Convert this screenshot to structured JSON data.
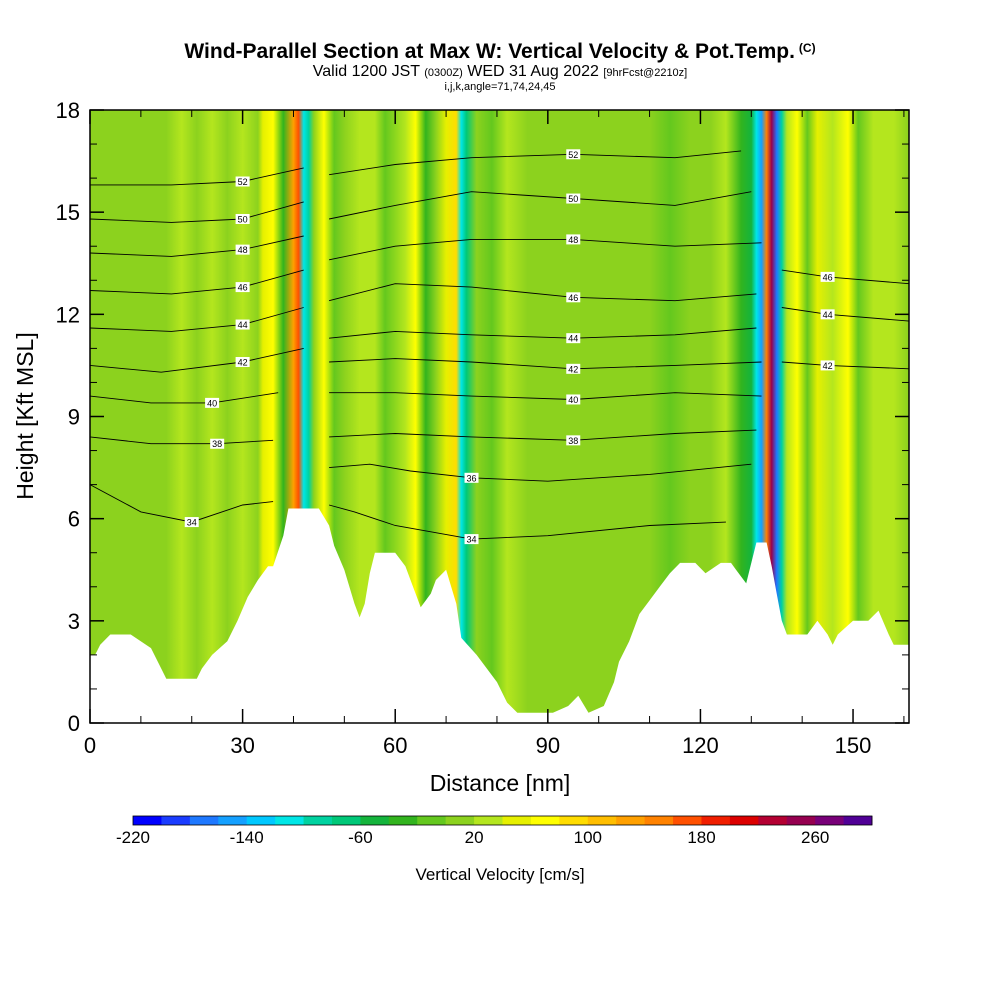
{
  "chart_data": {
    "type": "heatmap",
    "title": "Wind-Parallel Section at Max W: Vertical Velocity & Pot.Temp.",
    "title_mark": "(C)",
    "subtitle": {
      "valid": "Valid 1200 JST",
      "utc": "(0300Z)",
      "date": "WED 31 Aug 2022",
      "fcst": "[9hrFcst@2210z]"
    },
    "indices": "i,j,k,angle=71,74,24,45",
    "xlabel": "Distance [nm]",
    "ylabel": "Height [Kft MSL]",
    "xlim": [
      0,
      161
    ],
    "ylim": [
      0,
      18
    ],
    "xticks": [
      0,
      30,
      60,
      90,
      120,
      150
    ],
    "yticks": [
      0,
      3,
      6,
      9,
      12,
      15,
      18
    ],
    "colorbar": {
      "label": "Vertical Velocity [cm/s]",
      "tick_labels": [
        "-220",
        "-140",
        "-60",
        "20",
        "100",
        "180",
        "260"
      ],
      "colors": [
        "#0000ff",
        "#1a3cff",
        "#1e78ff",
        "#14a0ff",
        "#00c8ff",
        "#00e6e6",
        "#00d2a0",
        "#00c878",
        "#14b43c",
        "#32b41e",
        "#64c81e",
        "#8cd21e",
        "#b4e61e",
        "#e6f000",
        "#ffff00",
        "#ffdc00",
        "#ffbe00",
        "#ffa000",
        "#ff8200",
        "#ff5000",
        "#f01e00",
        "#dc0000",
        "#b40032",
        "#960050",
        "#780078",
        "#500096"
      ]
    },
    "terrain_kft": [
      [
        0,
        2
      ],
      [
        1,
        2
      ],
      [
        2,
        2.3
      ],
      [
        4,
        2.6
      ],
      [
        8,
        2.6
      ],
      [
        12,
        2.2
      ],
      [
        14,
        1.6
      ],
      [
        15,
        1.3
      ],
      [
        21,
        1.3
      ],
      [
        22,
        1.6
      ],
      [
        24,
        2
      ],
      [
        27,
        2.4
      ],
      [
        29,
        3
      ],
      [
        31,
        3.7
      ],
      [
        33,
        4.2
      ],
      [
        35,
        4.6
      ],
      [
        36,
        4.6
      ],
      [
        38,
        5.5
      ],
      [
        39,
        6.3
      ],
      [
        45,
        6.3
      ],
      [
        47,
        5.8
      ],
      [
        48,
        5.2
      ],
      [
        50,
        4.5
      ],
      [
        52,
        3.5
      ],
      [
        53,
        3.1
      ],
      [
        54,
        3.5
      ],
      [
        55,
        4.4
      ],
      [
        56,
        5
      ],
      [
        60,
        5
      ],
      [
        62,
        4.6
      ],
      [
        63,
        4.2
      ],
      [
        64,
        3.8
      ],
      [
        65,
        3.4
      ],
      [
        67,
        3.8
      ],
      [
        68,
        4.2
      ],
      [
        70,
        4.5
      ],
      [
        72,
        3.5
      ],
      [
        73,
        2.5
      ],
      [
        76,
        2
      ],
      [
        78,
        1.6
      ],
      [
        80,
        1.2
      ],
      [
        82,
        0.6
      ],
      [
        84,
        0.3
      ],
      [
        91,
        0.3
      ],
      [
        94,
        0.5
      ],
      [
        96,
        0.8
      ],
      [
        98,
        0.3
      ],
      [
        101,
        0.5
      ],
      [
        103,
        1.2
      ],
      [
        104,
        1.8
      ],
      [
        106,
        2.4
      ],
      [
        108,
        3.2
      ],
      [
        110,
        3.6
      ],
      [
        112,
        4
      ],
      [
        114,
        4.4
      ],
      [
        116,
        4.7
      ],
      [
        119,
        4.7
      ],
      [
        121,
        4.4
      ],
      [
        124,
        4.7
      ],
      [
        126,
        4.7
      ],
      [
        127,
        4.5
      ],
      [
        129,
        4.1
      ],
      [
        130,
        4.7
      ],
      [
        131,
        5.3
      ],
      [
        133,
        5.3
      ],
      [
        134,
        4.6
      ],
      [
        135,
        3.8
      ],
      [
        136,
        3
      ],
      [
        137,
        2.6
      ],
      [
        141,
        2.6
      ],
      [
        143,
        3
      ],
      [
        145,
        2.6
      ],
      [
        146,
        2.3
      ],
      [
        147,
        2.6
      ],
      [
        150,
        3
      ],
      [
        153,
        3
      ],
      [
        155,
        3.3
      ],
      [
        157,
        2.6
      ],
      [
        158,
        2.3
      ],
      [
        159,
        2.3
      ],
      [
        161,
        2.3
      ]
    ],
    "velocity_columns_cm_s": [
      [
        0,
        5
      ],
      [
        3,
        0
      ],
      [
        6,
        10
      ],
      [
        9,
        15
      ],
      [
        12,
        5
      ],
      [
        15,
        10
      ],
      [
        18,
        20
      ],
      [
        21,
        5
      ],
      [
        24,
        25
      ],
      [
        27,
        0
      ],
      [
        30,
        30
      ],
      [
        33,
        5
      ],
      [
        34,
        50
      ],
      [
        36,
        70
      ],
      [
        38,
        -30
      ],
      [
        40,
        120
      ],
      [
        41,
        170
      ],
      [
        42,
        -110
      ],
      [
        43,
        -90
      ],
      [
        44,
        10
      ],
      [
        46,
        60
      ],
      [
        48,
        -20
      ],
      [
        50,
        15
      ],
      [
        53,
        20
      ],
      [
        56,
        30
      ],
      [
        58,
        -10
      ],
      [
        62,
        20
      ],
      [
        64,
        60
      ],
      [
        66,
        -30
      ],
      [
        68,
        15
      ],
      [
        70,
        40
      ],
      [
        72,
        80
      ],
      [
        73,
        -110
      ],
      [
        74,
        -80
      ],
      [
        76,
        10
      ],
      [
        79,
        -10
      ],
      [
        82,
        20
      ],
      [
        86,
        5
      ],
      [
        90,
        0
      ],
      [
        94,
        10
      ],
      [
        98,
        5
      ],
      [
        102,
        15
      ],
      [
        106,
        0
      ],
      [
        110,
        10
      ],
      [
        114,
        -10
      ],
      [
        118,
        10
      ],
      [
        122,
        0
      ],
      [
        125,
        20
      ],
      [
        128,
        -30
      ],
      [
        130,
        -60
      ],
      [
        131,
        -120
      ],
      [
        132,
        -150
      ],
      [
        133,
        140
      ],
      [
        134,
        240
      ],
      [
        135,
        -170
      ],
      [
        136,
        -100
      ],
      [
        137,
        30
      ],
      [
        139,
        60
      ],
      [
        141,
        -20
      ],
      [
        143,
        50
      ],
      [
        146,
        20
      ],
      [
        149,
        70
      ],
      [
        151,
        -10
      ],
      [
        154,
        30
      ],
      [
        158,
        20
      ],
      [
        161,
        0
      ]
    ],
    "theta_contours_c": [
      {
        "level": 34,
        "label": "34",
        "points": [
          [
            0,
            7
          ],
          [
            10,
            6.2
          ],
          [
            20,
            5.9
          ],
          [
            30,
            6.4
          ],
          [
            36,
            6.5
          ]
        ]
      },
      {
        "level": 34,
        "label": "34",
        "points": [
          [
            47,
            6.4
          ],
          [
            52,
            6.2
          ],
          [
            60,
            5.8
          ],
          [
            75,
            5.4
          ],
          [
            90,
            5.5
          ],
          [
            110,
            5.8
          ],
          [
            125,
            5.9
          ]
        ]
      },
      {
        "level": 36,
        "label": "36",
        "points": [
          [
            47,
            7.5
          ],
          [
            55,
            7.6
          ],
          [
            63,
            7.4
          ],
          [
            75,
            7.2
          ],
          [
            90,
            7.1
          ],
          [
            110,
            7.3
          ],
          [
            130,
            7.6
          ]
        ]
      },
      {
        "level": 38,
        "label": "38",
        "points": [
          [
            0,
            8.4
          ],
          [
            12,
            8.2
          ],
          [
            25,
            8.2
          ],
          [
            36,
            8.3
          ]
        ]
      },
      {
        "level": 38,
        "label": "38",
        "points": [
          [
            47,
            8.4
          ],
          [
            60,
            8.5
          ],
          [
            75,
            8.4
          ],
          [
            95,
            8.3
          ],
          [
            115,
            8.5
          ],
          [
            131,
            8.6
          ]
        ]
      },
      {
        "level": 40,
        "label": "40",
        "points": [
          [
            0,
            9.6
          ],
          [
            12,
            9.4
          ],
          [
            24,
            9.4
          ],
          [
            37,
            9.7
          ]
        ]
      },
      {
        "level": 40,
        "label": "40",
        "points": [
          [
            47,
            9.7
          ],
          [
            60,
            9.7
          ],
          [
            75,
            9.6
          ],
          [
            95,
            9.5
          ],
          [
            115,
            9.7
          ],
          [
            132,
            9.6
          ]
        ]
      },
      {
        "level": 42,
        "label": "42",
        "points": [
          [
            0,
            10.5
          ],
          [
            14,
            10.3
          ],
          [
            30,
            10.6
          ],
          [
            42,
            11
          ]
        ]
      },
      {
        "level": 42,
        "label": "42",
        "points": [
          [
            47,
            10.6
          ],
          [
            60,
            10.7
          ],
          [
            75,
            10.6
          ],
          [
            95,
            10.4
          ],
          [
            115,
            10.5
          ],
          [
            132,
            10.6
          ]
        ]
      },
      {
        "level": 42,
        "label": "42",
        "points": [
          [
            136,
            10.6
          ],
          [
            145,
            10.5
          ],
          [
            161,
            10.4
          ]
        ]
      },
      {
        "level": 44,
        "label": "44",
        "points": [
          [
            0,
            11.6
          ],
          [
            16,
            11.5
          ],
          [
            30,
            11.7
          ],
          [
            42,
            12.2
          ]
        ]
      },
      {
        "level": 44,
        "label": "44",
        "points": [
          [
            47,
            11.3
          ],
          [
            60,
            11.5
          ],
          [
            75,
            11.4
          ],
          [
            95,
            11.3
          ],
          [
            115,
            11.4
          ],
          [
            131,
            11.6
          ]
        ]
      },
      {
        "level": 44,
        "label": "44",
        "points": [
          [
            136,
            12.2
          ],
          [
            145,
            12
          ],
          [
            161,
            11.8
          ]
        ]
      },
      {
        "level": 46,
        "label": "46",
        "points": [
          [
            0,
            12.7
          ],
          [
            16,
            12.6
          ],
          [
            30,
            12.8
          ],
          [
            42,
            13.3
          ]
        ]
      },
      {
        "level": 46,
        "label": "46",
        "points": [
          [
            47,
            12.4
          ],
          [
            60,
            12.9
          ],
          [
            75,
            12.8
          ],
          [
            95,
            12.5
          ],
          [
            115,
            12.4
          ],
          [
            131,
            12.6
          ]
        ]
      },
      {
        "level": 46,
        "label": "46",
        "points": [
          [
            136,
            13.3
          ],
          [
            145,
            13.1
          ],
          [
            161,
            12.9
          ]
        ]
      },
      {
        "level": 48,
        "label": "48",
        "points": [
          [
            0,
            13.8
          ],
          [
            16,
            13.7
          ],
          [
            30,
            13.9
          ],
          [
            42,
            14.3
          ]
        ]
      },
      {
        "level": 48,
        "label": "48",
        "points": [
          [
            47,
            13.6
          ],
          [
            60,
            14
          ],
          [
            75,
            14.2
          ],
          [
            95,
            14.2
          ],
          [
            115,
            14
          ],
          [
            132,
            14.1
          ]
        ]
      },
      {
        "level": 50,
        "label": "50",
        "points": [
          [
            0,
            14.8
          ],
          [
            16,
            14.7
          ],
          [
            30,
            14.8
          ],
          [
            42,
            15.3
          ]
        ]
      },
      {
        "level": 50,
        "label": "50",
        "points": [
          [
            47,
            14.8
          ],
          [
            60,
            15.2
          ],
          [
            75,
            15.6
          ],
          [
            95,
            15.4
          ],
          [
            115,
            15.2
          ],
          [
            130,
            15.6
          ]
        ]
      },
      {
        "level": 52,
        "label": "52",
        "points": [
          [
            0,
            15.8
          ],
          [
            16,
            15.8
          ],
          [
            30,
            15.9
          ],
          [
            42,
            16.3
          ]
        ]
      },
      {
        "level": 52,
        "label": "52",
        "points": [
          [
            47,
            16.1
          ],
          [
            60,
            16.4
          ],
          [
            75,
            16.6
          ],
          [
            95,
            16.7
          ],
          [
            115,
            16.6
          ],
          [
            128,
            16.8
          ]
        ]
      }
    ]
  }
}
